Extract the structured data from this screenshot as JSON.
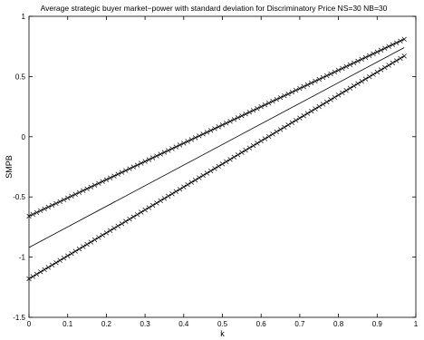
{
  "chart_data": {
    "type": "line",
    "title": "Average strategic buyer market−power with standard deviation for Discriminatory Price NS=30 NB=30",
    "xlabel": "k",
    "ylabel": "SMPB",
    "xlim": [
      0,
      1
    ],
    "ylim": [
      -1.5,
      1
    ],
    "xticks": [
      "0",
      "0.1",
      "0.2",
      "0.3",
      "0.4",
      "0.5",
      "0.6",
      "0.7",
      "0.8",
      "0.9",
      "1"
    ],
    "yticks": [
      "-1.5",
      "-1",
      "-0.5",
      "0",
      "0.5",
      "1"
    ],
    "grid": false,
    "legend": "none",
    "series": [
      {
        "marker": "x",
        "x": [
          0,
          0.97
        ],
        "values": [
          -0.66,
          0.81
        ]
      },
      {
        "marker": "none",
        "x": [
          0,
          0.97
        ],
        "values": [
          -0.92,
          0.74
        ]
      },
      {
        "marker": "x",
        "x": [
          0,
          0.97
        ],
        "values": [
          -1.18,
          0.67
        ]
      }
    ],
    "marker_count": 98
  }
}
